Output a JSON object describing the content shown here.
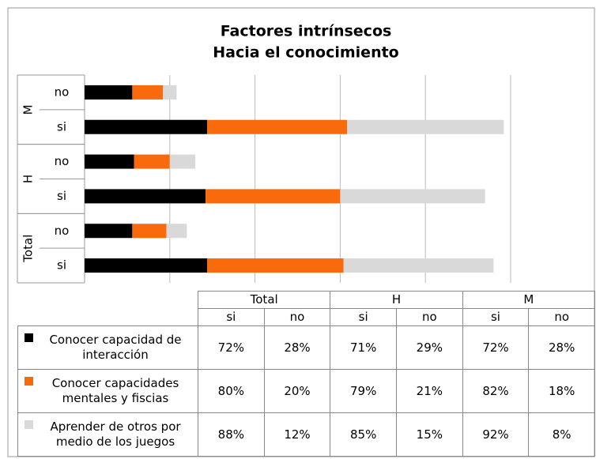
{
  "chart_data": {
    "type": "stacked_barh",
    "title": "Factores intrínsecos",
    "subtitle": "Hacia el conocimiento",
    "groups": [
      {
        "name": "Total",
        "categories": [
          "si",
          "no"
        ]
      },
      {
        "name": "H",
        "categories": [
          "si",
          "no"
        ]
      },
      {
        "name": "M",
        "categories": [
          "si",
          "no"
        ]
      }
    ],
    "series": [
      {
        "name": "Conocer capacidad de interacción",
        "color": "#000000",
        "values": [
          72,
          28,
          71,
          29,
          72,
          28
        ],
        "value_labels": [
          "72%",
          "28%",
          "71%",
          "29%",
          "72%",
          "28%"
        ]
      },
      {
        "name": "Conocer capacidades mentales y fiscias",
        "color": "#f96a0c",
        "values": [
          80,
          20,
          79,
          21,
          82,
          18
        ],
        "value_labels": [
          "80%",
          "20%",
          "79%",
          "21%",
          "82%",
          "18%"
        ]
      },
      {
        "name": "Aprender de otros por medio de los juegos",
        "color": "#d9d9d9",
        "values": [
          88,
          12,
          85,
          15,
          92,
          8
        ],
        "value_labels": [
          "88%",
          "12%",
          "85%",
          "15%",
          "92%",
          "8%"
        ]
      }
    ],
    "xlim": [
      0,
      250
    ],
    "xticks": [
      0,
      50,
      100,
      150,
      200,
      250
    ],
    "grid": true,
    "data_table": true
  }
}
